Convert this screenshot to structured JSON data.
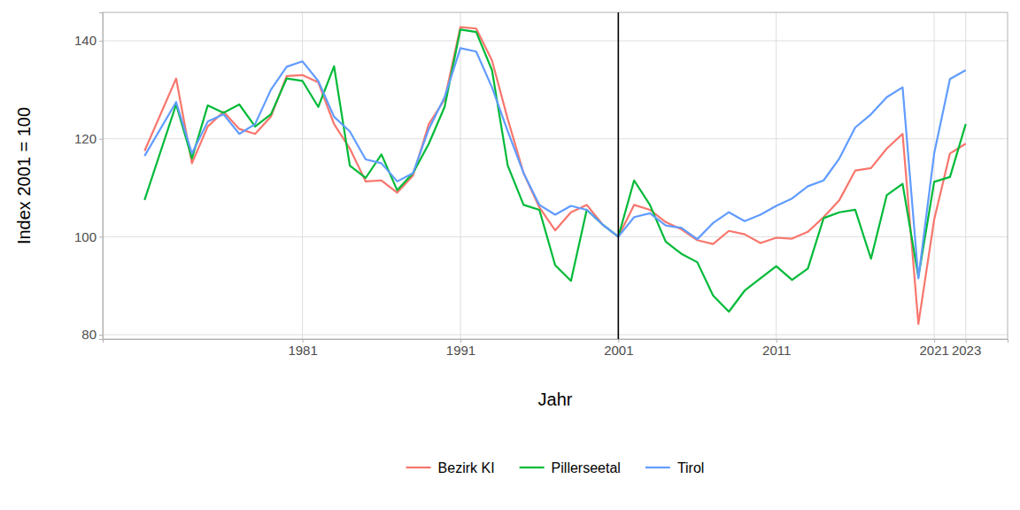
{
  "chart_data": {
    "type": "line",
    "x_label": "Jahr",
    "y_label": "Index 2001 = 100",
    "x": [
      1971,
      1973,
      1974,
      1975,
      1976,
      1977,
      1978,
      1979,
      1980,
      1981,
      1982,
      1983,
      1984,
      1985,
      1986,
      1987,
      1988,
      1989,
      1990,
      1991,
      1992,
      1993,
      1994,
      1995,
      1996,
      1997,
      1998,
      1999,
      2000,
      2001,
      2002,
      2003,
      2004,
      2005,
      2006,
      2007,
      2008,
      2009,
      2010,
      2011,
      2012,
      2013,
      2014,
      2015,
      2016,
      2017,
      2018,
      2019,
      2020,
      2021,
      2022,
      2023
    ],
    "series": [
      {
        "name": "Bezirk KI",
        "color": "#F8766D",
        "values": [
          117.5,
          132.3,
          115,
          122.5,
          125.5,
          122,
          121,
          124.5,
          132.8,
          133,
          131.5,
          123,
          118,
          111.3,
          111.5,
          109,
          112.5,
          123,
          128,
          142.8,
          142.5,
          136,
          124,
          113,
          106,
          101.3,
          105,
          106.5,
          102.5,
          100,
          106.5,
          105.5,
          103,
          101.5,
          99.3,
          98.5,
          101.2,
          100.5,
          98.7,
          99.8,
          99.6,
          101,
          104,
          107.5,
          113.5,
          114,
          118,
          121,
          82.2,
          103.5,
          117,
          119
        ]
      },
      {
        "name": "Pillerseetal",
        "color": "#00BA38",
        "values": [
          107.5,
          127,
          116,
          126.8,
          125.3,
          127,
          122.5,
          125,
          132.3,
          131.8,
          126.5,
          134.8,
          114.5,
          112,
          116.8,
          109.5,
          113,
          119,
          126.5,
          142.3,
          141.8,
          134,
          114.5,
          106.5,
          105.5,
          94.2,
          91,
          105.5,
          102.5,
          100,
          111.5,
          106.5,
          99,
          96.5,
          94.8,
          88,
          84.7,
          89,
          91.5,
          94,
          91.2,
          93.5,
          103.8,
          105,
          105.5,
          95.5,
          108.5,
          110.8,
          91.8,
          111.2,
          112.2,
          123
        ]
      },
      {
        "name": "Tirol",
        "color": "#619CFF",
        "values": [
          116.5,
          127.5,
          117,
          123.5,
          125,
          121,
          123,
          130,
          134.7,
          135.8,
          131.8,
          124.5,
          121.5,
          115.8,
          115,
          111.3,
          113,
          122,
          128.5,
          138.5,
          137.8,
          130.5,
          121.5,
          113,
          106.5,
          104.5,
          106.3,
          105.5,
          102.5,
          100,
          104,
          104.8,
          102.3,
          101.8,
          99.5,
          102.8,
          105,
          103.2,
          104.5,
          106.3,
          107.8,
          110.3,
          111.5,
          116,
          122.3,
          125,
          128.5,
          130.5,
          91.5,
          117,
          132.2,
          134
        ]
      }
    ],
    "reference_lines": [
      {
        "x": 2001
      }
    ],
    "xlim": [
      1968.35,
      2025.65
    ],
    "ylim": [
      79.1,
      145.8
    ],
    "xticks": [
      1981,
      1991,
      2001,
      2011,
      2021,
      2023
    ],
    "yticks": [
      80,
      100,
      120,
      140
    ],
    "grid": true,
    "legend": "bottom"
  }
}
